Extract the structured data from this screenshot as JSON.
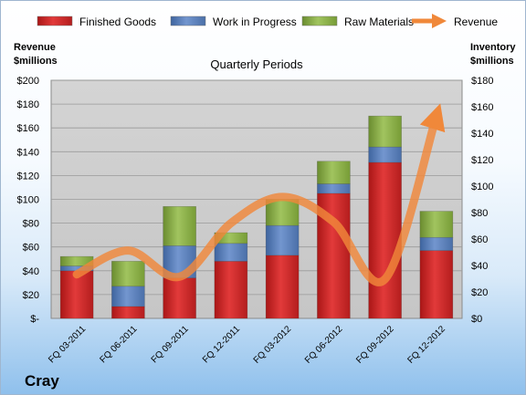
{
  "chart_data": {
    "type": "bar",
    "title": "Quarterly Periods",
    "company": "Cray",
    "y_left_label_lines": [
      "Revenue",
      "$millions"
    ],
    "y_right_label_lines": [
      "Inventory",
      "$millions"
    ],
    "categories": [
      "FQ 03-2011",
      "FQ 06-2011",
      "FQ 09-2011",
      "FQ 12-2011",
      "FQ 03-2012",
      "FQ 06-2012",
      "FQ 09-2012",
      "FQ 12-2012"
    ],
    "y_left": {
      "ylim": [
        0,
        200
      ],
      "ticks": [
        0,
        20,
        40,
        60,
        80,
        100,
        120,
        140,
        160,
        180,
        200
      ],
      "tick_labels": [
        "$-",
        "$20",
        "$40",
        "$60",
        "$80",
        "$100",
        "$120",
        "$140",
        "$160",
        "$180",
        "$200"
      ]
    },
    "y_right": {
      "ylim": [
        0,
        180
      ],
      "ticks": [
        0,
        20,
        40,
        60,
        80,
        100,
        120,
        140,
        160,
        180
      ],
      "tick_labels": [
        "$0",
        "$20",
        "$40",
        "$60",
        "$80",
        "$100",
        "$120",
        "$140",
        "$160",
        "$180"
      ]
    },
    "stacked_series": [
      {
        "name": "Finished Goods",
        "color": "#d42a2a",
        "values": [
          40,
          10,
          34,
          48,
          53,
          105,
          131,
          57
        ]
      },
      {
        "name": "Work in Progress",
        "color": "#5b84c4",
        "values": [
          4,
          17,
          27,
          15,
          25,
          8,
          13,
          11
        ]
      },
      {
        "name": "Raw Materials",
        "color": "#8bb04a",
        "values": [
          8,
          21,
          33,
          9,
          22,
          19,
          26,
          22
        ]
      }
    ],
    "line_series": {
      "name": "Revenue",
      "color": "#f0883a",
      "values": [
        37,
        57,
        35,
        80,
        102,
        81,
        33,
        170
      ]
    },
    "grid": true,
    "legend_position": "top"
  }
}
